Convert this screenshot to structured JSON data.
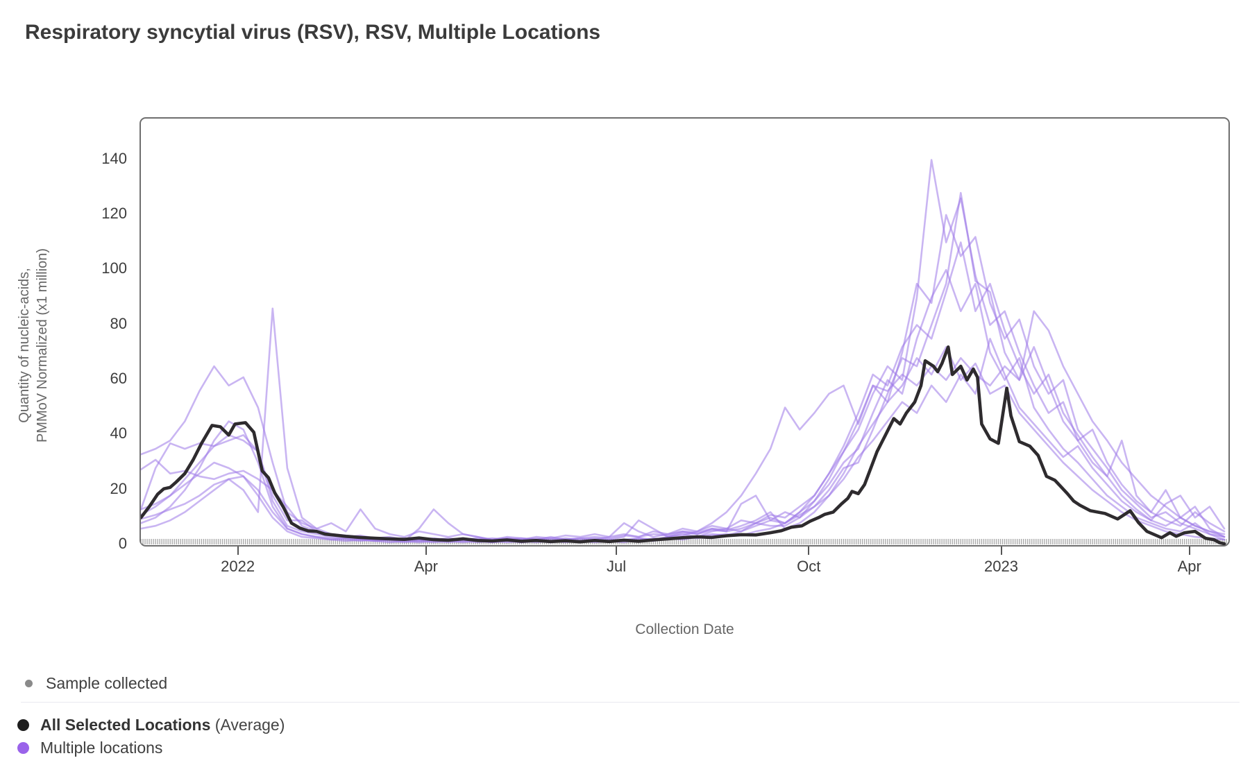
{
  "title": "Respiratory syncytial virus (RSV), RSV, Multiple Locations",
  "legend": {
    "sample": {
      "label": "Sample collected",
      "dot_color": "#8a8a8a"
    },
    "average": {
      "label_bold": "All Selected Locations",
      "label_rest": " (Average)",
      "dot_color": "#1d1d1d"
    },
    "locations": {
      "label": "Multiple locations",
      "dot_color": "#9a63ea"
    }
  },
  "chart_data": {
    "type": "line",
    "title": "Respiratory syncytial virus (RSV), RSV, Multiple Locations",
    "xlabel": "Collection Date",
    "ylabel_line1": "Quantity of nucleic-acids,",
    "ylabel_line2": "PMMoV Normalized (x1 million)",
    "legend_entries": [
      "Sample collected",
      "All Selected Locations (Average)",
      "Multiple locations"
    ],
    "legend_position": "bottom-left",
    "grid": false,
    "x_domain": {
      "start_date": "2021-11-15",
      "end_date": "2023-04-19",
      "days": 520
    },
    "ylim": [
      0,
      155
    ],
    "y_ticks": [
      0,
      20,
      40,
      60,
      80,
      100,
      120,
      140
    ],
    "x_ticks": [
      {
        "label": "2022",
        "day": 47
      },
      {
        "label": "Apr",
        "day": 137
      },
      {
        "label": "Jul",
        "day": 228
      },
      {
        "label": "Oct",
        "day": 320
      },
      {
        "label": "2023",
        "day": 412
      },
      {
        "label": "Apr",
        "day": 502
      }
    ],
    "sample_marks": {
      "start_day": 0,
      "end_day": 519,
      "spacing_days": 1
    },
    "colors": {
      "average_line": "#2e2b2e",
      "location_line": "#9d79e8",
      "location_line_opacity": 0.55,
      "sample_tick": "#ababab"
    },
    "series": [
      {
        "id": "all-selected-locations-average",
        "role": "average",
        "legend_label": "All Selected Locations (Average)",
        "points": [
          [
            0,
            10
          ],
          [
            4,
            14
          ],
          [
            8,
            18.5
          ],
          [
            11,
            20.5
          ],
          [
            14,
            21
          ],
          [
            17,
            23
          ],
          [
            21,
            26
          ],
          [
            25,
            31
          ],
          [
            29,
            37
          ],
          [
            34,
            43.5
          ],
          [
            38,
            43
          ],
          [
            42,
            40
          ],
          [
            45,
            44
          ],
          [
            50,
            44.5
          ],
          [
            54,
            41
          ],
          [
            58,
            27
          ],
          [
            61,
            24.5
          ],
          [
            64,
            19
          ],
          [
            68,
            14
          ],
          [
            72,
            8
          ],
          [
            76,
            6.2
          ],
          [
            80,
            5.2
          ],
          [
            84,
            5
          ],
          [
            88,
            4
          ],
          [
            92,
            3.7
          ],
          [
            98,
            3.2
          ],
          [
            105,
            2.8
          ],
          [
            112,
            2.5
          ],
          [
            119,
            2.3
          ],
          [
            126,
            2.1
          ],
          [
            133,
            2.6
          ],
          [
            140,
            2
          ],
          [
            147,
            1.8
          ],
          [
            154,
            2.3
          ],
          [
            161,
            1.7
          ],
          [
            168,
            1.5
          ],
          [
            175,
            1.9
          ],
          [
            182,
            1.4
          ],
          [
            189,
            1.7
          ],
          [
            196,
            1.3
          ],
          [
            203,
            1.6
          ],
          [
            210,
            1.2
          ],
          [
            217,
            1.7
          ],
          [
            224,
            1.3
          ],
          [
            231,
            1.8
          ],
          [
            238,
            1.4
          ],
          [
            245,
            1.9
          ],
          [
            252,
            2.3
          ],
          [
            259,
            2.7
          ],
          [
            266,
            3
          ],
          [
            273,
            2.8
          ],
          [
            280,
            3.4
          ],
          [
            287,
            3.8
          ],
          [
            294,
            3.7
          ],
          [
            301,
            4.5
          ],
          [
            306,
            5.2
          ],
          [
            311,
            6.5
          ],
          [
            316,
            7
          ],
          [
            320,
            8.7
          ],
          [
            324,
            10
          ],
          [
            327,
            11.2
          ],
          [
            331,
            12
          ],
          [
            335,
            15
          ],
          [
            338,
            17
          ],
          [
            340,
            19.5
          ],
          [
            343,
            18.7
          ],
          [
            346,
            22
          ],
          [
            349,
            28
          ],
          [
            352,
            34
          ],
          [
            356,
            40
          ],
          [
            360,
            46
          ],
          [
            363,
            44
          ],
          [
            366,
            48
          ],
          [
            370,
            52
          ],
          [
            373,
            58
          ],
          [
            375,
            67
          ],
          [
            379,
            65
          ],
          [
            381,
            63
          ],
          [
            383,
            66
          ],
          [
            386,
            72
          ],
          [
            388,
            62
          ],
          [
            392,
            65
          ],
          [
            395,
            60
          ],
          [
            398,
            64
          ],
          [
            400,
            61
          ],
          [
            402,
            44
          ],
          [
            406,
            38.6
          ],
          [
            410,
            37
          ],
          [
            414,
            57
          ],
          [
            416,
            47
          ],
          [
            420,
            37.6
          ],
          [
            425,
            36
          ],
          [
            429,
            32.6
          ],
          [
            433,
            25
          ],
          [
            437,
            23.6
          ],
          [
            443,
            18.7
          ],
          [
            446,
            16
          ],
          [
            449,
            14.5
          ],
          [
            454,
            12.5
          ],
          [
            461,
            11.5
          ],
          [
            467,
            9.5
          ],
          [
            473,
            12.5
          ],
          [
            477,
            8.2
          ],
          [
            481,
            5
          ],
          [
            488,
            2.7
          ],
          [
            492,
            4.5
          ],
          [
            495,
            3.2
          ],
          [
            499,
            4.5
          ],
          [
            504,
            5
          ],
          [
            509,
            2.5
          ],
          [
            513,
            2
          ],
          [
            516,
            0.8
          ],
          [
            518,
            0.5
          ]
        ]
      },
      {
        "id": "location-1",
        "role": "location",
        "legend_label": "Multiple locations",
        "step_days": 7,
        "values": [
          33,
          35,
          38,
          45,
          56,
          65,
          58,
          61,
          50,
          30,
          12,
          8,
          6,
          4,
          3,
          2.5,
          2,
          2.5,
          2,
          1.5,
          2,
          1.5,
          2,
          1.5,
          1,
          1.5,
          1,
          1.5,
          1,
          1.5,
          1,
          2,
          1.5,
          2,
          2.5,
          2,
          3,
          4,
          3,
          5,
          6,
          5,
          8,
          10,
          8,
          12,
          18,
          26,
          34,
          45,
          58,
          52,
          70,
          95,
          88,
          120,
          105,
          112,
          88,
          75,
          82,
          65,
          55,
          60,
          42,
          35,
          28,
          20,
          15,
          10,
          12,
          8,
          6,
          4,
          3
        ]
      },
      {
        "id": "location-2",
        "role": "location",
        "legend_label": "Multiple locations",
        "step_days": 7,
        "values": [
          9.5,
          11,
          13,
          15,
          18,
          22,
          24,
          20,
          12,
          86,
          28,
          10,
          6,
          8,
          5,
          13,
          6,
          4,
          3,
          5,
          4,
          3,
          4,
          3,
          2,
          3,
          2.5,
          2,
          3,
          2,
          2.5,
          2,
          3,
          8,
          5,
          3,
          4,
          5,
          4,
          6,
          5,
          15,
          18,
          9,
          12,
          10,
          16,
          22,
          30,
          35,
          48,
          60,
          55,
          75,
          90,
          100,
          85,
          95,
          70,
          60,
          68,
          50,
          42,
          35,
          30,
          24,
          18,
          14,
          10,
          8,
          6,
          5,
          8,
          4,
          2
        ]
      },
      {
        "id": "location-3",
        "role": "location",
        "legend_label": "Multiple locations",
        "step_days": 7,
        "values": [
          11,
          14,
          18,
          24,
          30,
          36,
          40,
          38,
          34,
          16,
          7,
          5,
          4,
          3,
          2.5,
          2,
          1.5,
          2,
          1.5,
          1,
          1.5,
          1,
          1.5,
          1,
          1.5,
          1,
          1.5,
          1,
          1.5,
          1,
          1.5,
          1,
          1.5,
          1,
          2,
          1.5,
          2.5,
          2,
          3,
          4,
          3.5,
          5,
          7,
          9,
          8,
          12,
          16,
          24,
          34,
          42,
          55,
          65,
          60,
          90,
          140,
          110,
          126,
          98,
          80,
          85,
          70,
          58,
          48,
          52,
          38,
          30,
          25,
          18,
          13,
          9,
          7,
          10,
          7,
          5,
          4
        ]
      },
      {
        "id": "location-4",
        "role": "location",
        "legend_label": "Multiple locations",
        "step_days": 7,
        "values": [
          13,
          28,
          37,
          35,
          37,
          36,
          38,
          40,
          34,
          18,
          9,
          9,
          5,
          4,
          3,
          3.5,
          2.5,
          3,
          2,
          2.5,
          2,
          2.5,
          2,
          2.5,
          2,
          2.5,
          2,
          2.5,
          2,
          2.5,
          2,
          2.5,
          2,
          3,
          9,
          6,
          3,
          4.5,
          4,
          5.5,
          5,
          6,
          8,
          7,
          7,
          10,
          14,
          20,
          28,
          30,
          42,
          55,
          68,
          65,
          80,
          95,
          128,
          96,
          92,
          70,
          60,
          72,
          58,
          45,
          38,
          42,
          30,
          22,
          16,
          12,
          9,
          7,
          12,
          8,
          5
        ]
      },
      {
        "id": "location-5",
        "role": "location",
        "legend_label": "Multiple locations",
        "step_days": 7,
        "values": [
          27.5,
          31,
          26,
          27,
          25,
          24,
          26,
          27,
          24,
          20,
          14,
          7,
          5,
          4,
          3.5,
          3,
          2.5,
          2,
          2.5,
          2,
          2.5,
          2,
          2.5,
          2,
          2.5,
          2,
          2.5,
          2,
          2.5,
          2,
          2.5,
          3,
          2.5,
          3.5,
          3,
          4,
          3.5,
          5,
          4.5,
          6,
          5.5,
          7,
          9,
          12,
          6,
          8,
          12,
          18,
          26,
          36,
          44,
          52,
          58,
          68,
          62,
          72,
          60,
          66,
          55,
          58,
          48,
          42,
          36,
          30,
          25,
          20,
          16,
          12,
          9,
          7,
          5,
          4,
          3,
          2.5,
          2
        ]
      },
      {
        "id": "location-6",
        "role": "location",
        "legend_label": "Multiple locations",
        "step_days": 7,
        "values": [
          8,
          10,
          14,
          20,
          28,
          38,
          45,
          42,
          30,
          14,
          6,
          4,
          3,
          2.5,
          2,
          1.5,
          2,
          1.5,
          1,
          1.5,
          1,
          1.5,
          1,
          1.5,
          1,
          1.5,
          1,
          1.5,
          1,
          1.5,
          1,
          1.5,
          2,
          1.5,
          2.5,
          2,
          3,
          3.5,
          5,
          8,
          12,
          18,
          26,
          35,
          50,
          42,
          48,
          55,
          58,
          44,
          58,
          56,
          62,
          58,
          65,
          60,
          68,
          62,
          58,
          65,
          60,
          85,
          78,
          65,
          55,
          45,
          38,
          30,
          24,
          18,
          14,
          10,
          7,
          5,
          3
        ]
      },
      {
        "id": "location-7",
        "role": "location",
        "legend_label": "Multiple locations",
        "step_days": 7,
        "values": [
          13,
          15,
          18,
          22,
          26,
          30,
          28,
          25,
          18,
          10,
          5,
          3,
          2.5,
          2,
          1.5,
          2,
          1.5,
          1,
          1.5,
          6,
          13,
          8,
          4,
          3,
          2,
          2.5,
          2,
          3,
          2.5,
          3.5,
          3,
          4,
          3,
          4,
          3,
          5,
          4,
          6,
          5,
          7,
          6,
          9,
          8,
          11,
          10,
          14,
          18,
          26,
          36,
          48,
          62,
          58,
          72,
          80,
          75,
          92,
          110,
          85,
          95,
          78,
          65,
          55,
          62,
          48,
          40,
          32,
          25,
          38,
          18,
          12,
          20,
          10,
          14,
          6,
          3
        ]
      },
      {
        "id": "location-8",
        "role": "location",
        "legend_label": "Multiple locations",
        "step_days": 7,
        "values": [
          6,
          7,
          9,
          12,
          16,
          20,
          24,
          25,
          20,
          12,
          6,
          4,
          3,
          2,
          2.5,
          2,
          1.5,
          2,
          1.5,
          2,
          1.5,
          2,
          1.5,
          2,
          1.5,
          2,
          1.5,
          2,
          1.5,
          2,
          1.5,
          2,
          1.5,
          2,
          1.5,
          2.5,
          2,
          3,
          2.5,
          3.5,
          4,
          3.5,
          5,
          6,
          8,
          11,
          14,
          18,
          24,
          32,
          38,
          45,
          52,
          48,
          58,
          52,
          62,
          55,
          75,
          62,
          50,
          44,
          38,
          32,
          36,
          28,
          22,
          16,
          12,
          9,
          15,
          18,
          10,
          14,
          6
        ]
      }
    ]
  }
}
